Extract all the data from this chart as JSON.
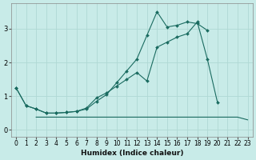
{
  "xlabel": "Humidex (Indice chaleur)",
  "bg_color": "#c8ebe8",
  "grid_color": "#b0d8d4",
  "line_color": "#1a6b60",
  "xlim": [
    -0.5,
    23.5
  ],
  "ylim": [
    -0.2,
    3.75
  ],
  "xticks": [
    0,
    1,
    2,
    3,
    4,
    5,
    6,
    7,
    8,
    9,
    10,
    11,
    12,
    13,
    14,
    15,
    16,
    17,
    18,
    19,
    20,
    21,
    22,
    23
  ],
  "yticks": [
    0,
    1,
    2,
    3
  ],
  "line_upper_x": [
    0,
    1,
    2,
    3,
    4,
    5,
    6,
    7,
    8,
    9,
    10,
    11,
    12,
    13,
    14,
    15,
    16,
    17,
    18,
    19,
    20,
    21,
    22,
    23
  ],
  "line_upper_y": [
    1.25,
    0.72,
    0.62,
    0.5,
    0.5,
    0.52,
    0.55,
    0.62,
    0.85,
    1.05,
    1.4,
    1.75,
    2.1,
    2.8,
    3.5,
    3.05,
    3.1,
    3.2,
    3.15,
    2.95,
    null,
    null,
    null,
    null
  ],
  "line_middle_x": [
    0,
    1,
    2,
    3,
    4,
    5,
    6,
    7,
    8,
    9,
    10,
    11,
    12,
    13,
    14,
    15,
    16,
    17,
    18,
    19,
    20,
    21,
    22,
    23
  ],
  "line_middle_y": [
    1.25,
    0.72,
    0.62,
    0.5,
    0.5,
    0.52,
    0.55,
    0.65,
    0.95,
    1.1,
    1.3,
    1.5,
    1.7,
    1.45,
    2.45,
    2.6,
    2.75,
    2.85,
    3.2,
    2.1,
    0.82,
    null,
    null,
    null
  ],
  "line_bottom_x": [
    0,
    1,
    2,
    3,
    4,
    5,
    6,
    7,
    8,
    9,
    10,
    11,
    12,
    13,
    14,
    15,
    16,
    17,
    18,
    19,
    20,
    21,
    22,
    23
  ],
  "line_bottom_y": [
    null,
    null,
    0.38,
    0.38,
    0.38,
    0.38,
    0.38,
    0.38,
    0.38,
    0.38,
    0.38,
    0.38,
    0.38,
    0.38,
    0.38,
    0.38,
    0.38,
    0.38,
    0.38,
    0.38,
    0.38,
    0.38,
    0.38,
    0.3
  ]
}
